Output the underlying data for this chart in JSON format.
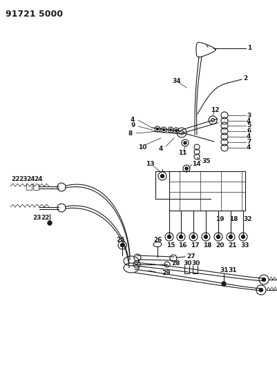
{
  "title": "91721 5000",
  "bg_color": "#ffffff",
  "fg_color": "#1a1a1a",
  "lw": 0.8,
  "lw_thin": 0.5,
  "fs": 6.5,
  "fig_width": 4.01,
  "fig_height": 5.33,
  "dpi": 100
}
